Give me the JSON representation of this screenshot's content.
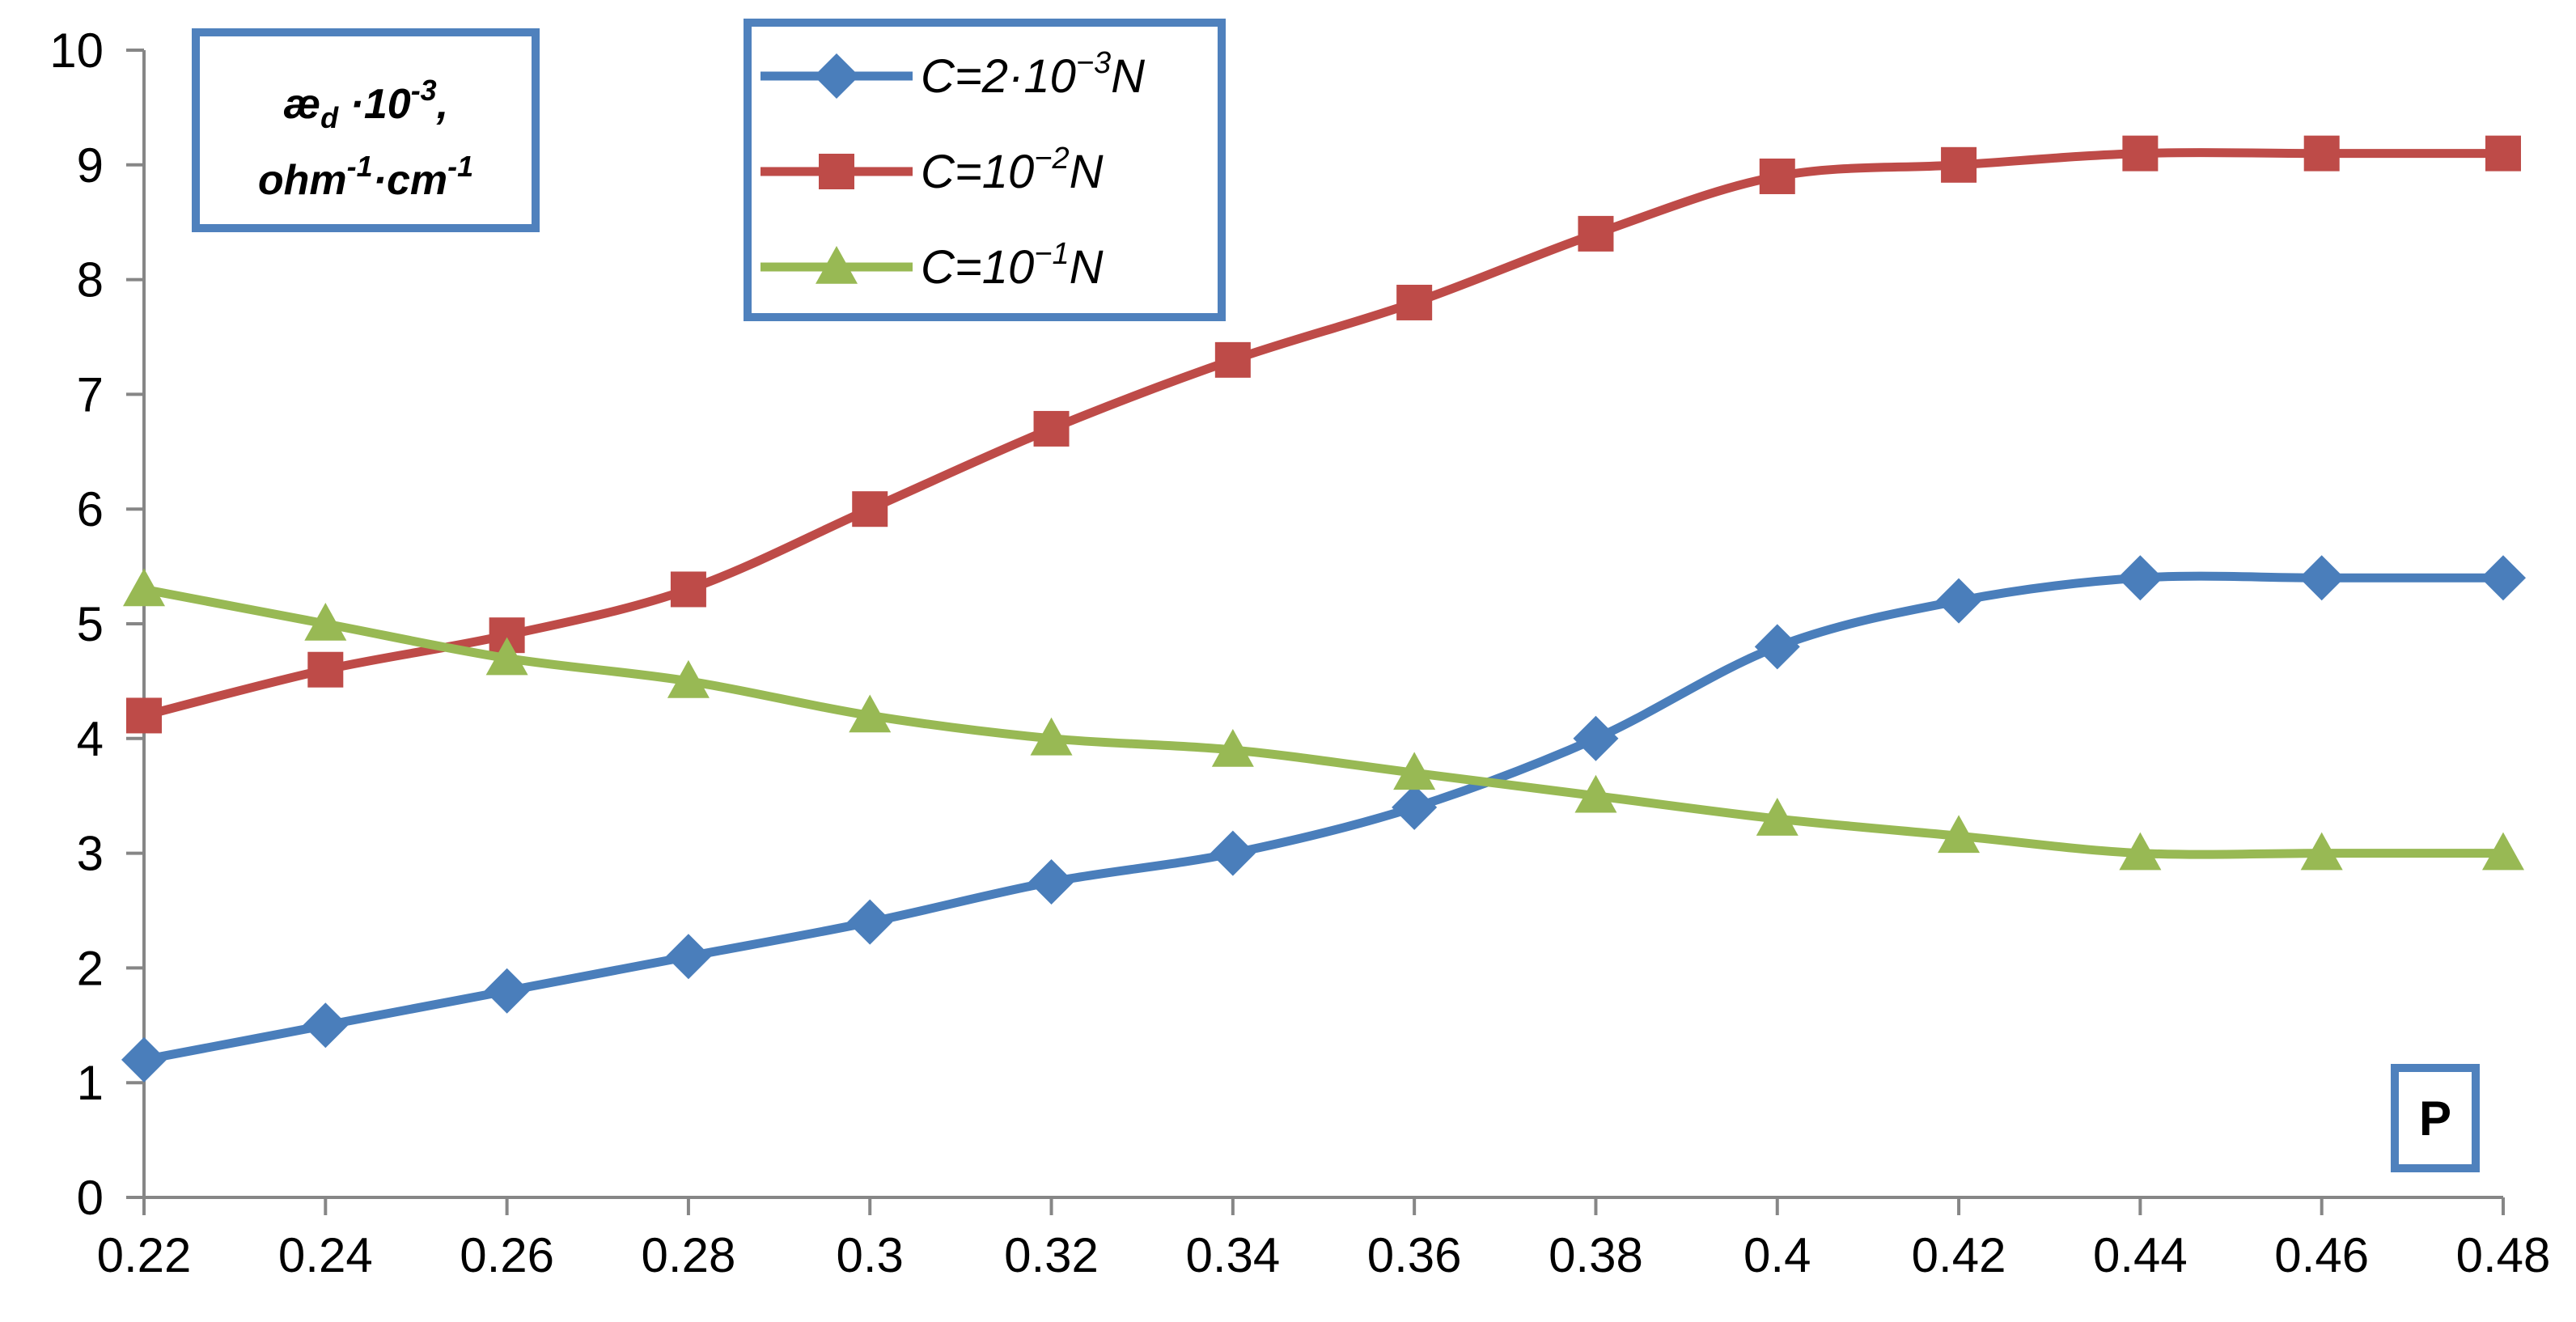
{
  "chart_data": {
    "type": "line",
    "title": "",
    "x": [
      0.22,
      0.24,
      0.26,
      0.28,
      0.3,
      0.32,
      0.34,
      0.36,
      0.38,
      0.4,
      0.42,
      0.44,
      0.46,
      0.48
    ],
    "x_tick_labels": [
      "0.22",
      "0.24",
      "0.26",
      "0.28",
      "0.3",
      "0.32",
      "0.34",
      "0.36",
      "0.38",
      "0.4",
      "0.42",
      "0.44",
      "0.46",
      "0.48"
    ],
    "y_tick_labels": [
      "0",
      "1",
      "2",
      "3",
      "4",
      "5",
      "6",
      "7",
      "8",
      "9",
      "10"
    ],
    "xlim": [
      0.22,
      0.48
    ],
    "ylim": [
      0,
      10
    ],
    "grid": false,
    "legend_position": "top-center",
    "ylabel": {
      "base": "æ",
      "sub": "d",
      "mid": " ·10",
      "sup1": "-3",
      "end1": ",",
      "line2_a": "ohm",
      "sup2": "-1",
      "line2_b": "·cm",
      "sup3": "-1"
    },
    "xlabel": "P",
    "series": [
      {
        "name": "C=2·10⁻³N",
        "legend": {
          "prefix": "C=2·10",
          "sup": "−3",
          "suffix": "N"
        },
        "marker": "diamond",
        "color": "#4a7ebb",
        "values": [
          1.2,
          1.5,
          1.8,
          2.1,
          2.4,
          2.75,
          3.0,
          3.4,
          4.0,
          4.8,
          5.2,
          5.4,
          5.4,
          5.4
        ]
      },
      {
        "name": "C=10⁻²N",
        "legend": {
          "prefix": "C=10",
          "sup": "−2",
          "suffix": "N"
        },
        "marker": "square",
        "color": "#be4b48",
        "values": [
          4.2,
          4.6,
          4.9,
          5.3,
          6.0,
          6.7,
          7.3,
          7.8,
          8.4,
          8.9,
          9.0,
          9.1,
          9.1,
          9.1
        ]
      },
      {
        "name": "C=10⁻¹N",
        "legend": {
          "prefix": "C=10",
          "sup": "−1",
          "suffix": "N"
        },
        "marker": "triangle",
        "color": "#98b954",
        "values": [
          5.3,
          5.0,
          4.7,
          4.5,
          4.2,
          4.0,
          3.9,
          3.7,
          3.5,
          3.3,
          3.15,
          3.0,
          3.0,
          3.0
        ]
      }
    ],
    "frame_color": "#4f81bd"
  }
}
